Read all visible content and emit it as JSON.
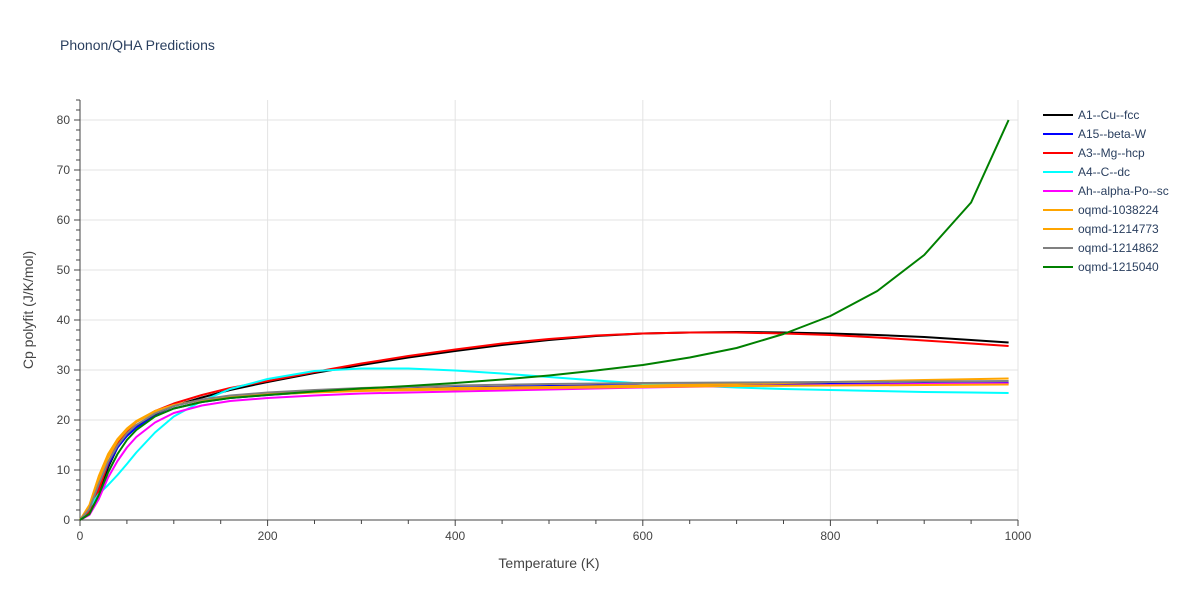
{
  "chart_data": {
    "type": "line",
    "title": "Phonon/QHA Predictions",
    "xlabel": "Temperature (K)",
    "ylabel": "Cp polyfit (J/K/mol)",
    "xlim": [
      0,
      1000
    ],
    "ylim": [
      0,
      84
    ],
    "xticks": [
      0,
      200,
      400,
      600,
      800,
      1000
    ],
    "yticks": [
      0,
      10,
      20,
      30,
      40,
      50,
      60,
      70,
      80
    ],
    "grid": true,
    "legend_position": "right",
    "series": [
      {
        "name": "A1--Cu--fcc",
        "color": "#000000",
        "x": [
          0,
          10,
          20,
          30,
          40,
          50,
          60,
          80,
          100,
          130,
          160,
          200,
          250,
          300,
          350,
          400,
          450,
          500,
          550,
          600,
          650,
          700,
          750,
          800,
          850,
          900,
          950,
          990
        ],
        "y": [
          0,
          1.5,
          5.5,
          10.5,
          14.5,
          17.0,
          18.8,
          21.2,
          22.8,
          24.5,
          26.0,
          27.6,
          29.4,
          31.0,
          32.5,
          33.8,
          35.0,
          36.0,
          36.8,
          37.3,
          37.5,
          37.6,
          37.5,
          37.3,
          37.0,
          36.6,
          36.0,
          35.5
        ]
      },
      {
        "name": "A15--beta-W",
        "color": "#0000ff",
        "x": [
          0,
          10,
          20,
          30,
          40,
          50,
          60,
          80,
          100,
          130,
          160,
          200,
          250,
          300,
          400,
          500,
          600,
          700,
          800,
          900,
          990
        ],
        "y": [
          0,
          1.8,
          6.5,
          11.0,
          14.5,
          16.8,
          18.5,
          20.8,
          22.3,
          23.6,
          24.4,
          25.0,
          25.6,
          26.0,
          26.5,
          26.8,
          27.0,
          27.1,
          27.2,
          27.3,
          27.4
        ]
      },
      {
        "name": "A3--Mg--hcp",
        "color": "#ff0000",
        "x": [
          0,
          10,
          20,
          30,
          40,
          50,
          60,
          80,
          100,
          130,
          160,
          200,
          250,
          300,
          350,
          400,
          450,
          500,
          550,
          600,
          650,
          700,
          750,
          800,
          850,
          900,
          950,
          990
        ],
        "y": [
          0,
          1.6,
          6.0,
          11.5,
          15.2,
          17.8,
          19.6,
          21.8,
          23.3,
          25.0,
          26.4,
          27.8,
          29.6,
          31.3,
          32.8,
          34.1,
          35.3,
          36.2,
          36.9,
          37.3,
          37.5,
          37.5,
          37.3,
          37.0,
          36.5,
          35.9,
          35.3,
          34.8
        ]
      },
      {
        "name": "A4--C--dc",
        "color": "#00ffff",
        "x": [
          0,
          10,
          20,
          30,
          40,
          50,
          60,
          80,
          100,
          130,
          160,
          200,
          250,
          300,
          350,
          400,
          450,
          500,
          550,
          600,
          650,
          700,
          750,
          800,
          850,
          900,
          950,
          990
        ],
        "y": [
          0,
          2.5,
          5.2,
          7.0,
          9.0,
          11.2,
          13.5,
          17.5,
          20.7,
          23.8,
          26.2,
          28.2,
          29.8,
          30.3,
          30.3,
          29.9,
          29.3,
          28.6,
          27.9,
          27.3,
          26.9,
          26.5,
          26.2,
          26.0,
          25.8,
          25.6,
          25.5,
          25.4
        ]
      },
      {
        "name": "Ah--alpha-Po--sc",
        "color": "#ff00ff",
        "x": [
          0,
          10,
          20,
          30,
          40,
          50,
          60,
          80,
          100,
          130,
          160,
          200,
          250,
          300,
          400,
          500,
          600,
          700,
          800,
          900,
          990
        ],
        "y": [
          0,
          1.0,
          4.2,
          8.5,
          11.8,
          14.5,
          16.6,
          19.5,
          21.4,
          22.9,
          23.8,
          24.4,
          24.9,
          25.3,
          25.7,
          26.1,
          26.5,
          26.8,
          27.0,
          27.2,
          27.3
        ]
      },
      {
        "name": "oqmd-1038224",
        "color": "#ffa500",
        "x": [
          0,
          10,
          20,
          30,
          40,
          50,
          60,
          80,
          100,
          130,
          160,
          200,
          250,
          300,
          400,
          500,
          600,
          700,
          800,
          900,
          990
        ],
        "y": [
          0,
          3.0,
          8.8,
          13.2,
          16.2,
          18.3,
          19.8,
          21.8,
          23.0,
          24.0,
          24.6,
          25.1,
          25.5,
          25.8,
          26.1,
          26.4,
          26.6,
          26.8,
          26.9,
          27.0,
          27.1
        ]
      },
      {
        "name": "oqmd-1214773",
        "color": "#ffa500",
        "x": [
          0,
          10,
          20,
          30,
          40,
          50,
          60,
          80,
          100,
          130,
          160,
          200,
          250,
          300,
          400,
          500,
          600,
          700,
          800,
          900,
          990
        ],
        "y": [
          0,
          2.8,
          8.2,
          12.5,
          15.8,
          18.0,
          19.6,
          21.6,
          22.9,
          24.0,
          24.7,
          25.2,
          25.7,
          26.0,
          26.4,
          26.6,
          26.9,
          27.2,
          27.6,
          28.0,
          28.3
        ]
      },
      {
        "name": "oqmd-1214862",
        "color": "#808080",
        "x": [
          0,
          10,
          20,
          30,
          40,
          50,
          60,
          80,
          100,
          130,
          160,
          200,
          250,
          300,
          400,
          500,
          600,
          700,
          800,
          900,
          990
        ],
        "y": [
          0,
          2.2,
          7.2,
          11.6,
          14.9,
          17.3,
          19.0,
          21.3,
          22.8,
          24.1,
          24.9,
          25.5,
          26.0,
          26.4,
          26.9,
          27.2,
          27.4,
          27.5,
          27.6,
          27.7,
          27.8
        ]
      },
      {
        "name": "oqmd-1215040",
        "color": "#008000",
        "x": [
          0,
          10,
          20,
          30,
          40,
          50,
          60,
          80,
          100,
          130,
          160,
          200,
          250,
          300,
          350,
          400,
          450,
          500,
          550,
          600,
          650,
          700,
          750,
          800,
          850,
          900,
          950,
          990
        ],
        "y": [
          0,
          1.2,
          5.0,
          9.5,
          13.2,
          16.0,
          18.0,
          20.7,
          22.3,
          23.6,
          24.4,
          25.0,
          25.7,
          26.3,
          26.8,
          27.4,
          28.1,
          28.9,
          29.9,
          31.0,
          32.5,
          34.4,
          37.2,
          40.8,
          45.8,
          53.0,
          63.5,
          80.0
        ]
      }
    ]
  }
}
